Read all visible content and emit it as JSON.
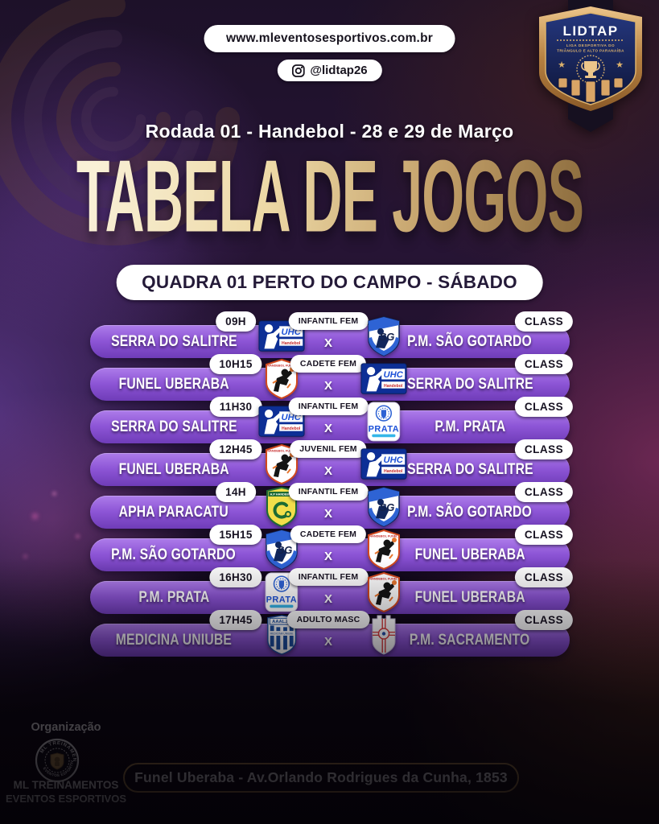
{
  "header": {
    "website": "www.mleventosesportivos.com.br",
    "instagram_handle": "@lidtap26",
    "round_label": "Rodada 01 - Handebol - 28 e 29 de Março",
    "main_title": "TABELA DE JOGOS"
  },
  "badge": {
    "name": "LIDTAP",
    "subtitle_line1": "LIGA DESPORTIVA DO",
    "subtitle_line2": "TRIÂNGULO E ALTO PARANAÍBA"
  },
  "venue_banner": "QUADRA 01 PERTO DO CAMPO - SÁBADO",
  "schedule": {
    "games": [
      {
        "time": "09H",
        "category": "INFANTIL FEM",
        "versus": "X",
        "home": "SERRA DO SALITRE",
        "away": "P.M. SÃO GOTARDO",
        "home_logo": "uhc-handebol",
        "away_logo": "sao-gotardo",
        "class_label": "CLASS"
      },
      {
        "time": "10H15",
        "category": "CADETE FEM",
        "versus": "X",
        "home": "FUNEL UBERABA",
        "away": "SERRA DO SALITRE",
        "home_logo": "handebol-funel",
        "away_logo": "uhc-handebol",
        "class_label": "CLASS"
      },
      {
        "time": "11H30",
        "category": "INFANTIL FEM",
        "versus": "X",
        "home": "SERRA DO SALITRE",
        "away": "P.M. PRATA",
        "home_logo": "uhc-handebol",
        "away_logo": "prata",
        "class_label": "CLASS"
      },
      {
        "time": "12H45",
        "category": "JUVENIL FEM",
        "versus": "X",
        "home": "FUNEL UBERABA",
        "away": "SERRA DO SALITRE",
        "home_logo": "handebol-funel",
        "away_logo": "uhc-handebol",
        "class_label": "CLASS"
      },
      {
        "time": "14H",
        "category": "INFANTIL FEM",
        "versus": "X",
        "home": "APHA PARACATU",
        "away": "P.M. SÃO GOTARDO",
        "home_logo": "apha-paracatu",
        "away_logo": "sao-gotardo",
        "class_label": "CLASS"
      },
      {
        "time": "15H15",
        "category": "CADETE FEM",
        "versus": "X",
        "home": "P.M. SÃO GOTARDO",
        "away": "FUNEL UBERABA",
        "home_logo": "sao-gotardo",
        "away_logo": "handebol-funel",
        "class_label": "CLASS"
      },
      {
        "time": "16H30",
        "category": "INFANTIL FEM",
        "versus": "X",
        "home": "P.M. PRATA",
        "away": "FUNEL UBERABA",
        "home_logo": "prata",
        "away_logo": "handebol-funel",
        "class_label": "CLASS"
      },
      {
        "time": "17H45",
        "category": "ADULTO MASC",
        "versus": "X",
        "home": "MEDICINA UNIUBE",
        "away": "P.M. SACRAMENTO",
        "home_logo": "aaaljm-medicina",
        "away_logo": "sacramento",
        "class_label": "CLASS"
      }
    ]
  },
  "logos": {
    "uhc-handebol": {
      "primary": "UHC",
      "secondary": "Handebol"
    },
    "sao-gotardo": {
      "primary": "SG"
    },
    "handebol-funel": {
      "primary": "HANDEBOL FUNEL"
    },
    "prata": {
      "primary": "PRATA"
    },
    "apha-paracatu": {
      "primary": "A.P HANDEBOL"
    },
    "aaaljm-medicina": {
      "primary": "AAALJM",
      "secondary": "MEDICINA UNIUBE"
    },
    "sacramento": {
      "primary": ""
    }
  },
  "footer": {
    "organization_label": "Organização",
    "organization_line1": "ML TREINAMENTOS",
    "organization_line2": "EVENTOS ESPORTIVOS",
    "seal_text_top": "ML TREINAMENTOS",
    "seal_text_bottom": "EVENTOS ESPORTIVOS",
    "address": "Funel Uberaba - Av.Orlando Rodrigues da Cunha, 1853"
  },
  "colors": {
    "row_bar_top": "#ad7cea",
    "row_bar_bottom": "#6f3cb8",
    "gold_border": "#bb924e",
    "title_gold_light": "#f9f0d6",
    "title_gold_dark": "#8f6f40",
    "pill_text": "#171221"
  }
}
